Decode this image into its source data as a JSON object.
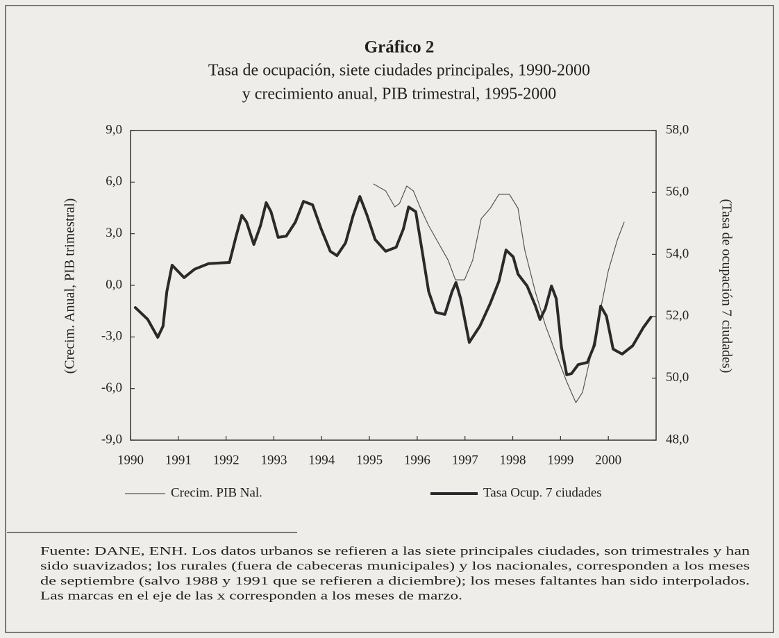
{
  "chart_data": {
    "type": "line",
    "title": "Gráfico 2",
    "subtitle": [
      "Tasa de ocupación, siete ciudades principales, 1990-2000",
      "y crecimiento anual, PIB trimestral, 1995-2000"
    ],
    "ylabel": "(Crecim. Anual, PIB trimestral)",
    "y2label": "(Tasa de ocupación 7 ciudades)",
    "xlim": [
      1990,
      2001
    ],
    "xticks": [
      1990,
      1991,
      1992,
      1993,
      1994,
      1995,
      1996,
      1997,
      1998,
      1999,
      2000
    ],
    "ylim": [
      -9,
      9
    ],
    "yticks": [
      {
        "value": 9,
        "label": "9,0"
      },
      {
        "value": 6,
        "label": "6,0"
      },
      {
        "value": 3,
        "label": "3,0"
      },
      {
        "value": 0,
        "label": "0,0"
      },
      {
        "value": -3,
        "label": "-3,0"
      },
      {
        "value": -6,
        "label": "-6,0"
      },
      {
        "value": -9,
        "label": "-9,0"
      }
    ],
    "y2lim": [
      48,
      58
    ],
    "y2ticks": [
      {
        "value": 58,
        "label": "58,0"
      },
      {
        "value": 56,
        "label": "56,0"
      },
      {
        "value": 54,
        "label": "54,0"
      },
      {
        "value": 52,
        "label": "52,0"
      },
      {
        "value": 50,
        "label": "50,0"
      },
      {
        "value": 48,
        "label": "48,0"
      }
    ],
    "series": [
      {
        "name": "Crecim. PIB Nal.",
        "color": "#555555",
        "x": [
          1995.09,
          1995.34,
          1995.53,
          1995.63,
          1995.78,
          1995.92,
          1996.07,
          1996.24,
          1996.46,
          1996.65,
          1996.8,
          1996.99,
          1997.16,
          1997.34,
          1997.53,
          1997.71,
          1997.93,
          1998.11,
          1998.25,
          1998.47,
          1998.69,
          1998.91,
          1999.13,
          1999.32,
          1999.46,
          1999.64,
          1999.81,
          2000.0,
          2000.19,
          2000.33
        ],
        "values": [
          5.89,
          5.49,
          4.56,
          4.76,
          5.77,
          5.49,
          4.48,
          3.47,
          2.38,
          1.45,
          0.32,
          0.32,
          1.45,
          3.87,
          4.48,
          5.29,
          5.29,
          4.48,
          2.06,
          -0.36,
          -2.38,
          -4.0,
          -5.61,
          -6.82,
          -6.22,
          -4.0,
          -1.78,
          0.85,
          2.66,
          3.67
        ]
      },
      {
        "name": "Tasa Ocup. 7 ciudades",
        "color": "#2a2a2a",
        "axis": "y2",
        "x": [
          1990.1,
          1990.36,
          1990.57,
          1990.68,
          1990.76,
          1990.87,
          1991.12,
          1991.34,
          1991.63,
          1992.07,
          1992.21,
          1992.33,
          1992.43,
          1992.58,
          1992.72,
          1992.84,
          1992.94,
          1993.09,
          1993.26,
          1993.45,
          1993.62,
          1993.81,
          1993.99,
          1994.18,
          1994.32,
          1994.5,
          1994.66,
          1994.8,
          1994.95,
          1995.12,
          1995.34,
          1995.56,
          1995.71,
          1995.82,
          1995.97,
          1996.1,
          1996.24,
          1996.39,
          1996.58,
          1996.73,
          1996.81,
          1996.91,
          1997.09,
          1997.31,
          1997.53,
          1997.71,
          1997.86,
          1998.01,
          1998.11,
          1998.3,
          1998.47,
          1998.57,
          1998.68,
          1998.81,
          1998.91,
          1999.02,
          1999.13,
          1999.23,
          1999.37,
          1999.56,
          1999.71,
          1999.84,
          1999.96,
          2000.1,
          2000.29,
          2000.51,
          2000.73,
          2000.89
        ],
        "values": [
          52.28,
          51.9,
          51.32,
          51.68,
          52.8,
          53.65,
          53.25,
          53.52,
          53.7,
          53.74,
          54.59,
          55.26,
          55.04,
          54.32,
          54.93,
          55.67,
          55.38,
          54.55,
          54.59,
          55.04,
          55.71,
          55.6,
          54.82,
          54.1,
          53.96,
          54.37,
          55.26,
          55.87,
          55.26,
          54.48,
          54.1,
          54.23,
          54.82,
          55.53,
          55.38,
          54.14,
          52.8,
          52.13,
          52.06,
          52.8,
          53.09,
          52.57,
          51.16,
          51.68,
          52.42,
          53.13,
          54.14,
          53.92,
          53.36,
          52.98,
          52.35,
          51.9,
          52.24,
          52.98,
          52.57,
          51.0,
          50.11,
          50.15,
          50.44,
          50.51,
          51.07,
          52.33,
          52.01,
          50.94,
          50.78,
          51.05,
          51.63,
          51.97
        ]
      }
    ],
    "notes": [
      "Fuente: DANE, ENH. Los datos urbanos se refieren a las siete principales ciudades, son trimestrales y han",
      "sido suavizados; los rurales (fuera de cabeceras municipales) y los nacionales, corresponden a los meses",
      "de septiembre (salvo 1988 y 1991 que se refieren a diciembre); los meses faltantes han sido interpolados.",
      "Las marcas en el eje de las x corresponden a los meses de marzo."
    ]
  }
}
